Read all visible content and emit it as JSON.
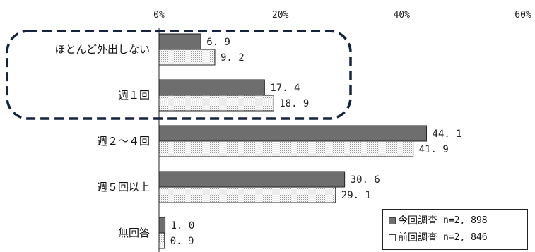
{
  "chart_data": {
    "type": "bar",
    "orientation": "horizontal",
    "categories": [
      "ほとんど外出しない",
      "週１回",
      "週２～４回",
      "週５回以上",
      "無回答"
    ],
    "series": [
      {
        "name": "今回調査",
        "n_label": "n=2, 898",
        "values": [
          6.9,
          17.4,
          44.1,
          30.6,
          1.0
        ],
        "labels": [
          "6. 9",
          "17. 4",
          "44. 1",
          "30. 6",
          "1. 0"
        ],
        "fill": "#6e6e6e"
      },
      {
        "name": "前回調査",
        "n_label": "n=2, 846",
        "values": [
          9.2,
          18.9,
          41.9,
          29.1,
          0.9
        ],
        "labels": [
          "9. 2",
          "18. 9",
          "41. 9",
          "29. 1",
          "0. 9"
        ],
        "fill": "dotted"
      }
    ],
    "xlim": [
      0,
      60
    ],
    "xticks": [
      0,
      20,
      40,
      60
    ],
    "xtick_labels": [
      "0%",
      "20%",
      "40%",
      "60%"
    ],
    "grid": false,
    "legend_position": "bottom-right",
    "annotation": "dashed rounded box highlighting ほとんど外出しない and 週１回",
    "colors": {
      "current": "#6e6e6e",
      "previous_pattern": "#b5b5b5",
      "outline": "#222222",
      "highlight": "#15233f"
    }
  },
  "legend": {
    "current": {
      "name": "今回調査",
      "n": "n=2, 898",
      "icon": "filled-square-icon"
    },
    "previous": {
      "name": "前回調査",
      "n": "n=2, 846",
      "icon": "hollow-square-icon"
    }
  }
}
